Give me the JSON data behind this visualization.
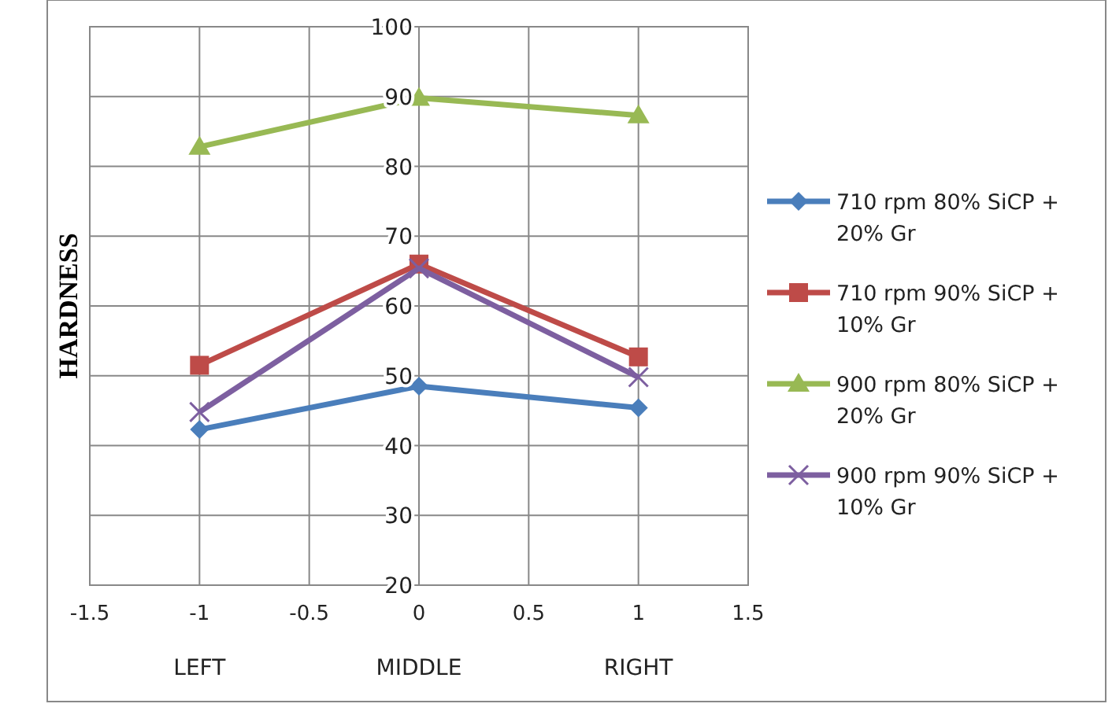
{
  "chart_data": {
    "type": "line",
    "ylabel": "HARDNESS",
    "x": [
      -1,
      0,
      1
    ],
    "xlim": [
      -1.5,
      1.5
    ],
    "xticks": [
      -1.5,
      -1,
      -0.5,
      0,
      0.5,
      1,
      1.5
    ],
    "ylim": [
      20,
      100
    ],
    "yticks": [
      20,
      30,
      40,
      50,
      60,
      70,
      80,
      90,
      100
    ],
    "grid": true,
    "legend": "right",
    "series": [
      {
        "name": "710 rpm 80% SiCP + 20% Gr",
        "color": "#4a7ebb",
        "marker": "diamond",
        "values": [
          42.3,
          48.5,
          45.4
        ]
      },
      {
        "name": "710 rpm 90% SiCP + 10% Gr",
        "color": "#be4b48",
        "marker": "square",
        "values": [
          51.5,
          66,
          52.7
        ]
      },
      {
        "name": "900 rpm 80% SiCP + 20% Gr",
        "color": "#98b954",
        "marker": "triangle",
        "values": [
          82.8,
          89.8,
          87.3
        ]
      },
      {
        "name": "900 rpm 90% SiCP + 10% Gr",
        "color": "#7d5fa0",
        "marker": "cross",
        "values": [
          44.8,
          65.4,
          49.8
        ]
      }
    ],
    "annotations": [
      "LEFT",
      "MIDDLE",
      "RIGHT"
    ]
  }
}
